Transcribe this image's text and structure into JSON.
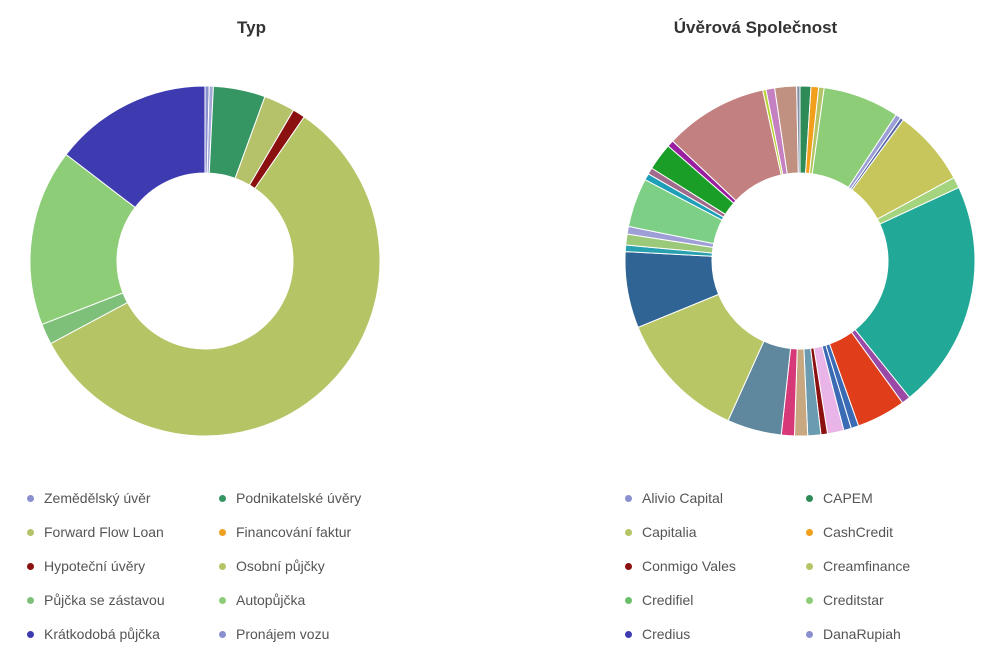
{
  "chart_data": [
    {
      "type": "pie",
      "title": "Typ",
      "legend_position": "bottom",
      "slices": [
        {
          "label": "Zemědělský úvěr",
          "value": 0.4,
          "color": "#8a8fd0"
        },
        {
          "label": "Pronájem vozu",
          "value": 0.4,
          "color": "#a4a8d8"
        },
        {
          "label": "Podnikatelské úvěry",
          "value": 5.0,
          "color": "#359563"
        },
        {
          "label": "Forward Flow Loan",
          "value": 3.0,
          "color": "#b5c26a"
        },
        {
          "label": "Hypoteční úvěry",
          "value": 1.2,
          "color": "#8b1010"
        },
        {
          "label": "Osobní půjčky",
          "value": 60.0,
          "color": "#b5c465"
        },
        {
          "label": "Půjčka se zástavou",
          "value": 2.0,
          "color": "#7ec07a"
        },
        {
          "label": "Autopůjčka",
          "value": 17.0,
          "color": "#8dcd78"
        },
        {
          "label": "Krátkodobá půjčka",
          "value": 15.2,
          "color": "#3e3bb0"
        },
        {
          "label": "Financování faktur",
          "value": 0.0,
          "color": "#f0a020"
        }
      ],
      "legend": [
        {
          "label": "Zemědělský úvěr",
          "color": "#8a8fd0"
        },
        {
          "label": "Podnikatelské úvěry",
          "color": "#359563"
        },
        {
          "label": "Forward Flow Loan",
          "color": "#b5c26a"
        },
        {
          "label": "Financování faktur",
          "color": "#f0a020"
        },
        {
          "label": "Hypoteční úvěry",
          "color": "#8b1010"
        },
        {
          "label": "Osobní půjčky",
          "color": "#b5c465"
        },
        {
          "label": "Půjčka se zástavou",
          "color": "#7ec07a"
        },
        {
          "label": "Autopůjčka",
          "color": "#8dcd78"
        },
        {
          "label": "Krátkodobá půjčka",
          "color": "#3e3bb0"
        },
        {
          "label": "Pronájem vozu",
          "color": "#8a8fd0"
        }
      ]
    },
    {
      "type": "pie",
      "title": "Úvěrová Společnost",
      "legend_position": "bottom",
      "slices": [
        {
          "value": 1.0,
          "color": "#2e8b57"
        },
        {
          "value": 0.7,
          "color": "#f29f1c"
        },
        {
          "value": 0.5,
          "color": "#b5c465"
        },
        {
          "value": 7.0,
          "color": "#8dcd78"
        },
        {
          "value": 0.5,
          "color": "#9b9fd6"
        },
        {
          "value": 0.3,
          "color": "#5565a8"
        },
        {
          "value": 7.0,
          "color": "#c6c65c"
        },
        {
          "value": 1.0,
          "color": "#a5d47e"
        },
        {
          "value": 21.0,
          "color": "#21a896"
        },
        {
          "value": 0.8,
          "color": "#9a4aa6"
        },
        {
          "value": 4.5,
          "color": "#e03e1a"
        },
        {
          "value": 0.7,
          "color": "#3b6bb5"
        },
        {
          "value": 0.7,
          "color": "#3b6bb5"
        },
        {
          "value": 1.5,
          "color": "#e9b5e8"
        },
        {
          "value": 0.6,
          "color": "#8b1010"
        },
        {
          "value": 1.2,
          "color": "#6a9bb0"
        },
        {
          "value": 1.2,
          "color": "#c8a880"
        },
        {
          "value": 1.2,
          "color": "#d63878"
        },
        {
          "value": 5.0,
          "color": "#5f879e"
        },
        {
          "value": 12.0,
          "color": "#b8c666"
        },
        {
          "value": 7.0,
          "color": "#2f6494"
        },
        {
          "value": 0.6,
          "color": "#29a0b0"
        },
        {
          "value": 1.0,
          "color": "#9cc87a"
        },
        {
          "value": 0.7,
          "color": "#9f9fd8"
        },
        {
          "value": 4.5,
          "color": "#7ecf86"
        },
        {
          "value": 0.6,
          "color": "#1e9fb8"
        },
        {
          "value": 0.6,
          "color": "#a06a8a"
        },
        {
          "value": 2.5,
          "color": "#1a9e28"
        },
        {
          "value": 0.6,
          "color": "#9a1fa0"
        },
        {
          "value": 9.5,
          "color": "#c38080"
        },
        {
          "value": 0.3,
          "color": "#b8d030"
        },
        {
          "value": 0.8,
          "color": "#c480c0"
        },
        {
          "value": 2.0,
          "color": "#c09080"
        },
        {
          "value": 0.3,
          "color": "#8090a8"
        }
      ],
      "legend": [
        {
          "label": "Alivio Capital",
          "color": "#8a8fd0"
        },
        {
          "label": "CAPEM",
          "color": "#2e8b57"
        },
        {
          "label": "Capitalia",
          "color": "#b5c465"
        },
        {
          "label": "CashCredit",
          "color": "#f29f1c"
        },
        {
          "label": "Conmigo Vales",
          "color": "#8b1010"
        },
        {
          "label": "Creamfinance",
          "color": "#b5c465"
        },
        {
          "label": "Credifiel",
          "color": "#6abf6a"
        },
        {
          "label": "Creditstar",
          "color": "#8dcd78"
        },
        {
          "label": "Credius",
          "color": "#3e3bb0"
        },
        {
          "label": "DanaRupiah",
          "color": "#8a8fd0"
        }
      ]
    }
  ]
}
